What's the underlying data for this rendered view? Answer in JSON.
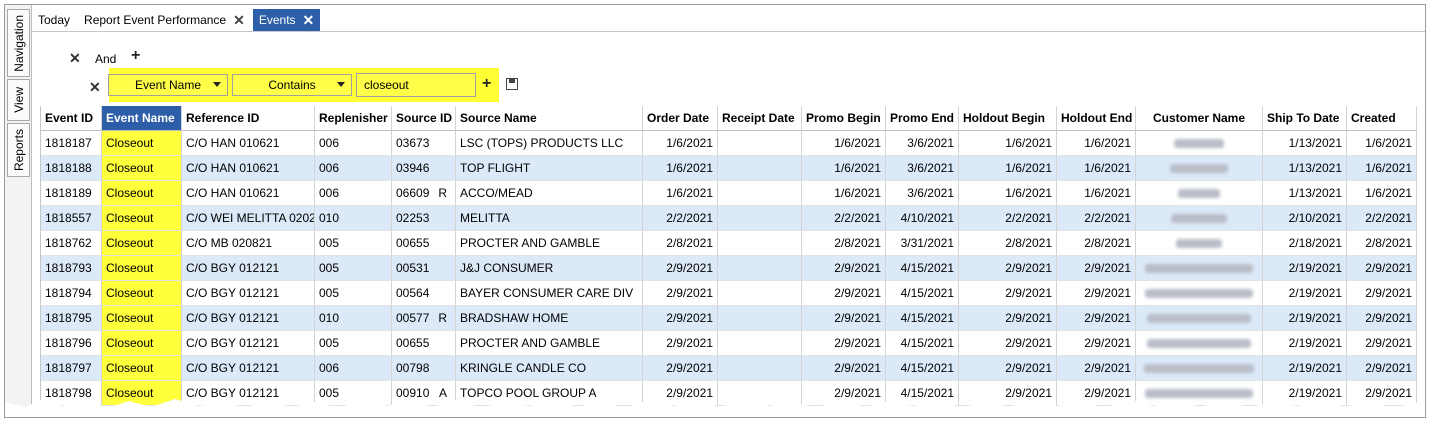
{
  "side_tabs": [
    "Navigation",
    "View",
    "Reports"
  ],
  "tabs": [
    {
      "label": "Today",
      "closable": false,
      "active": false
    },
    {
      "label": "Report Event Performance",
      "closable": true,
      "active": false
    },
    {
      "label": "Events",
      "closable": true,
      "active": true
    }
  ],
  "filter": {
    "group_operator": "And",
    "field": "Event Name",
    "operator": "Contains",
    "value": "closeout"
  },
  "colors": {
    "accent": "#2c5fa8",
    "highlight": "#ffff3c",
    "row_alt": "#dce9f8"
  },
  "table": {
    "columns": [
      "Event ID",
      "Event Name",
      "Reference ID",
      "Replenisher",
      "Source ID",
      "Source Name",
      "Order Date",
      "Receipt Date",
      "Promo Begin",
      "Promo End",
      "Holdout Begin",
      "Holdout End",
      "Customer Name",
      "Ship To Date",
      "Created"
    ],
    "rows": [
      {
        "event_id": "1818187",
        "event_name": "Closeout",
        "reference_id": "C/O HAN 010621",
        "replenisher": "006",
        "source_id": "03673",
        "flag": "",
        "source_name": "LSC (TOPS) PRODUCTS LLC",
        "order_date": "1/6/2021",
        "receipt_date": "",
        "promo_begin": "1/6/2021",
        "promo_end": "3/6/2021",
        "holdout_begin": "1/6/2021",
        "holdout_end": "1/6/2021",
        "customer_name": "",
        "ship_to_date": "1/13/2021",
        "created": "1/6/2021"
      },
      {
        "event_id": "1818188",
        "event_name": "Closeout",
        "reference_id": "C/O HAN 010621",
        "replenisher": "006",
        "source_id": "03946",
        "flag": "",
        "source_name": "TOP FLIGHT",
        "order_date": "1/6/2021",
        "receipt_date": "",
        "promo_begin": "1/6/2021",
        "promo_end": "3/6/2021",
        "holdout_begin": "1/6/2021",
        "holdout_end": "1/6/2021",
        "customer_name": "",
        "ship_to_date": "1/13/2021",
        "created": "1/6/2021"
      },
      {
        "event_id": "1818189",
        "event_name": "Closeout",
        "reference_id": "C/O HAN 010621",
        "replenisher": "006",
        "source_id": "06609",
        "flag": "R",
        "source_name": "ACCO/MEAD",
        "order_date": "1/6/2021",
        "receipt_date": "",
        "promo_begin": "1/6/2021",
        "promo_end": "3/6/2021",
        "holdout_begin": "1/6/2021",
        "holdout_end": "1/6/2021",
        "customer_name": "",
        "ship_to_date": "1/13/2021",
        "created": "1/6/2021"
      },
      {
        "event_id": "1818557",
        "event_name": "Closeout",
        "reference_id": "C/O WEI MELITTA 0202",
        "replenisher": "010",
        "source_id": "02253",
        "flag": "",
        "source_name": "MELITTA",
        "order_date": "2/2/2021",
        "receipt_date": "",
        "promo_begin": "2/2/2021",
        "promo_end": "4/10/2021",
        "holdout_begin": "2/2/2021",
        "holdout_end": "2/2/2021",
        "customer_name": "",
        "ship_to_date": "2/10/2021",
        "created": "2/2/2021"
      },
      {
        "event_id": "1818762",
        "event_name": "Closeout",
        "reference_id": "C/O MB 020821",
        "replenisher": "005",
        "source_id": "00655",
        "flag": "",
        "source_name": "PROCTER AND GAMBLE",
        "order_date": "2/8/2021",
        "receipt_date": "",
        "promo_begin": "2/8/2021",
        "promo_end": "3/31/2021",
        "holdout_begin": "2/8/2021",
        "holdout_end": "2/8/2021",
        "customer_name": "",
        "ship_to_date": "2/18/2021",
        "created": "2/8/2021"
      },
      {
        "event_id": "1818793",
        "event_name": "Closeout",
        "reference_id": "C/O BGY 012121",
        "replenisher": "005",
        "source_id": "00531",
        "flag": "",
        "source_name": "J&J CONSUMER",
        "order_date": "2/9/2021",
        "receipt_date": "",
        "promo_begin": "2/9/2021",
        "promo_end": "4/15/2021",
        "holdout_begin": "2/9/2021",
        "holdout_end": "2/9/2021",
        "customer_name": "",
        "ship_to_date": "2/19/2021",
        "created": "2/9/2021"
      },
      {
        "event_id": "1818794",
        "event_name": "Closeout",
        "reference_id": "C/O BGY 012121",
        "replenisher": "005",
        "source_id": "00564",
        "flag": "",
        "source_name": "BAYER CONSUMER CARE DIV",
        "order_date": "2/9/2021",
        "receipt_date": "",
        "promo_begin": "2/9/2021",
        "promo_end": "4/15/2021",
        "holdout_begin": "2/9/2021",
        "holdout_end": "2/9/2021",
        "customer_name": "",
        "ship_to_date": "2/19/2021",
        "created": "2/9/2021"
      },
      {
        "event_id": "1818795",
        "event_name": "Closeout",
        "reference_id": "C/O BGY 012121",
        "replenisher": "010",
        "source_id": "00577",
        "flag": "R",
        "source_name": "BRADSHAW HOME",
        "order_date": "2/9/2021",
        "receipt_date": "",
        "promo_begin": "2/9/2021",
        "promo_end": "4/15/2021",
        "holdout_begin": "2/9/2021",
        "holdout_end": "2/9/2021",
        "customer_name": "",
        "ship_to_date": "2/19/2021",
        "created": "2/9/2021"
      },
      {
        "event_id": "1818796",
        "event_name": "Closeout",
        "reference_id": "C/O BGY 012121",
        "replenisher": "005",
        "source_id": "00655",
        "flag": "",
        "source_name": "PROCTER AND GAMBLE",
        "order_date": "2/9/2021",
        "receipt_date": "",
        "promo_begin": "2/9/2021",
        "promo_end": "4/15/2021",
        "holdout_begin": "2/9/2021",
        "holdout_end": "2/9/2021",
        "customer_name": "",
        "ship_to_date": "2/19/2021",
        "created": "2/9/2021"
      },
      {
        "event_id": "1818797",
        "event_name": "Closeout",
        "reference_id": "C/O BGY 012121",
        "replenisher": "006",
        "source_id": "00798",
        "flag": "",
        "source_name": "KRINGLE CANDLE CO",
        "order_date": "2/9/2021",
        "receipt_date": "",
        "promo_begin": "2/9/2021",
        "promo_end": "4/15/2021",
        "holdout_begin": "2/9/2021",
        "holdout_end": "2/9/2021",
        "customer_name": "",
        "ship_to_date": "2/19/2021",
        "created": "2/9/2021"
      },
      {
        "event_id": "1818798",
        "event_name": "Closeout",
        "reference_id": "C/O BGY 012121",
        "replenisher": "005",
        "source_id": "00910",
        "flag": "A",
        "source_name": "TOPCO POOL GROUP A",
        "order_date": "2/9/2021",
        "receipt_date": "",
        "promo_begin": "2/9/2021",
        "promo_end": "4/15/2021",
        "holdout_begin": "2/9/2021",
        "holdout_end": "2/9/2021",
        "customer_name": "",
        "ship_to_date": "2/19/2021",
        "created": "2/9/2021"
      }
    ]
  }
}
